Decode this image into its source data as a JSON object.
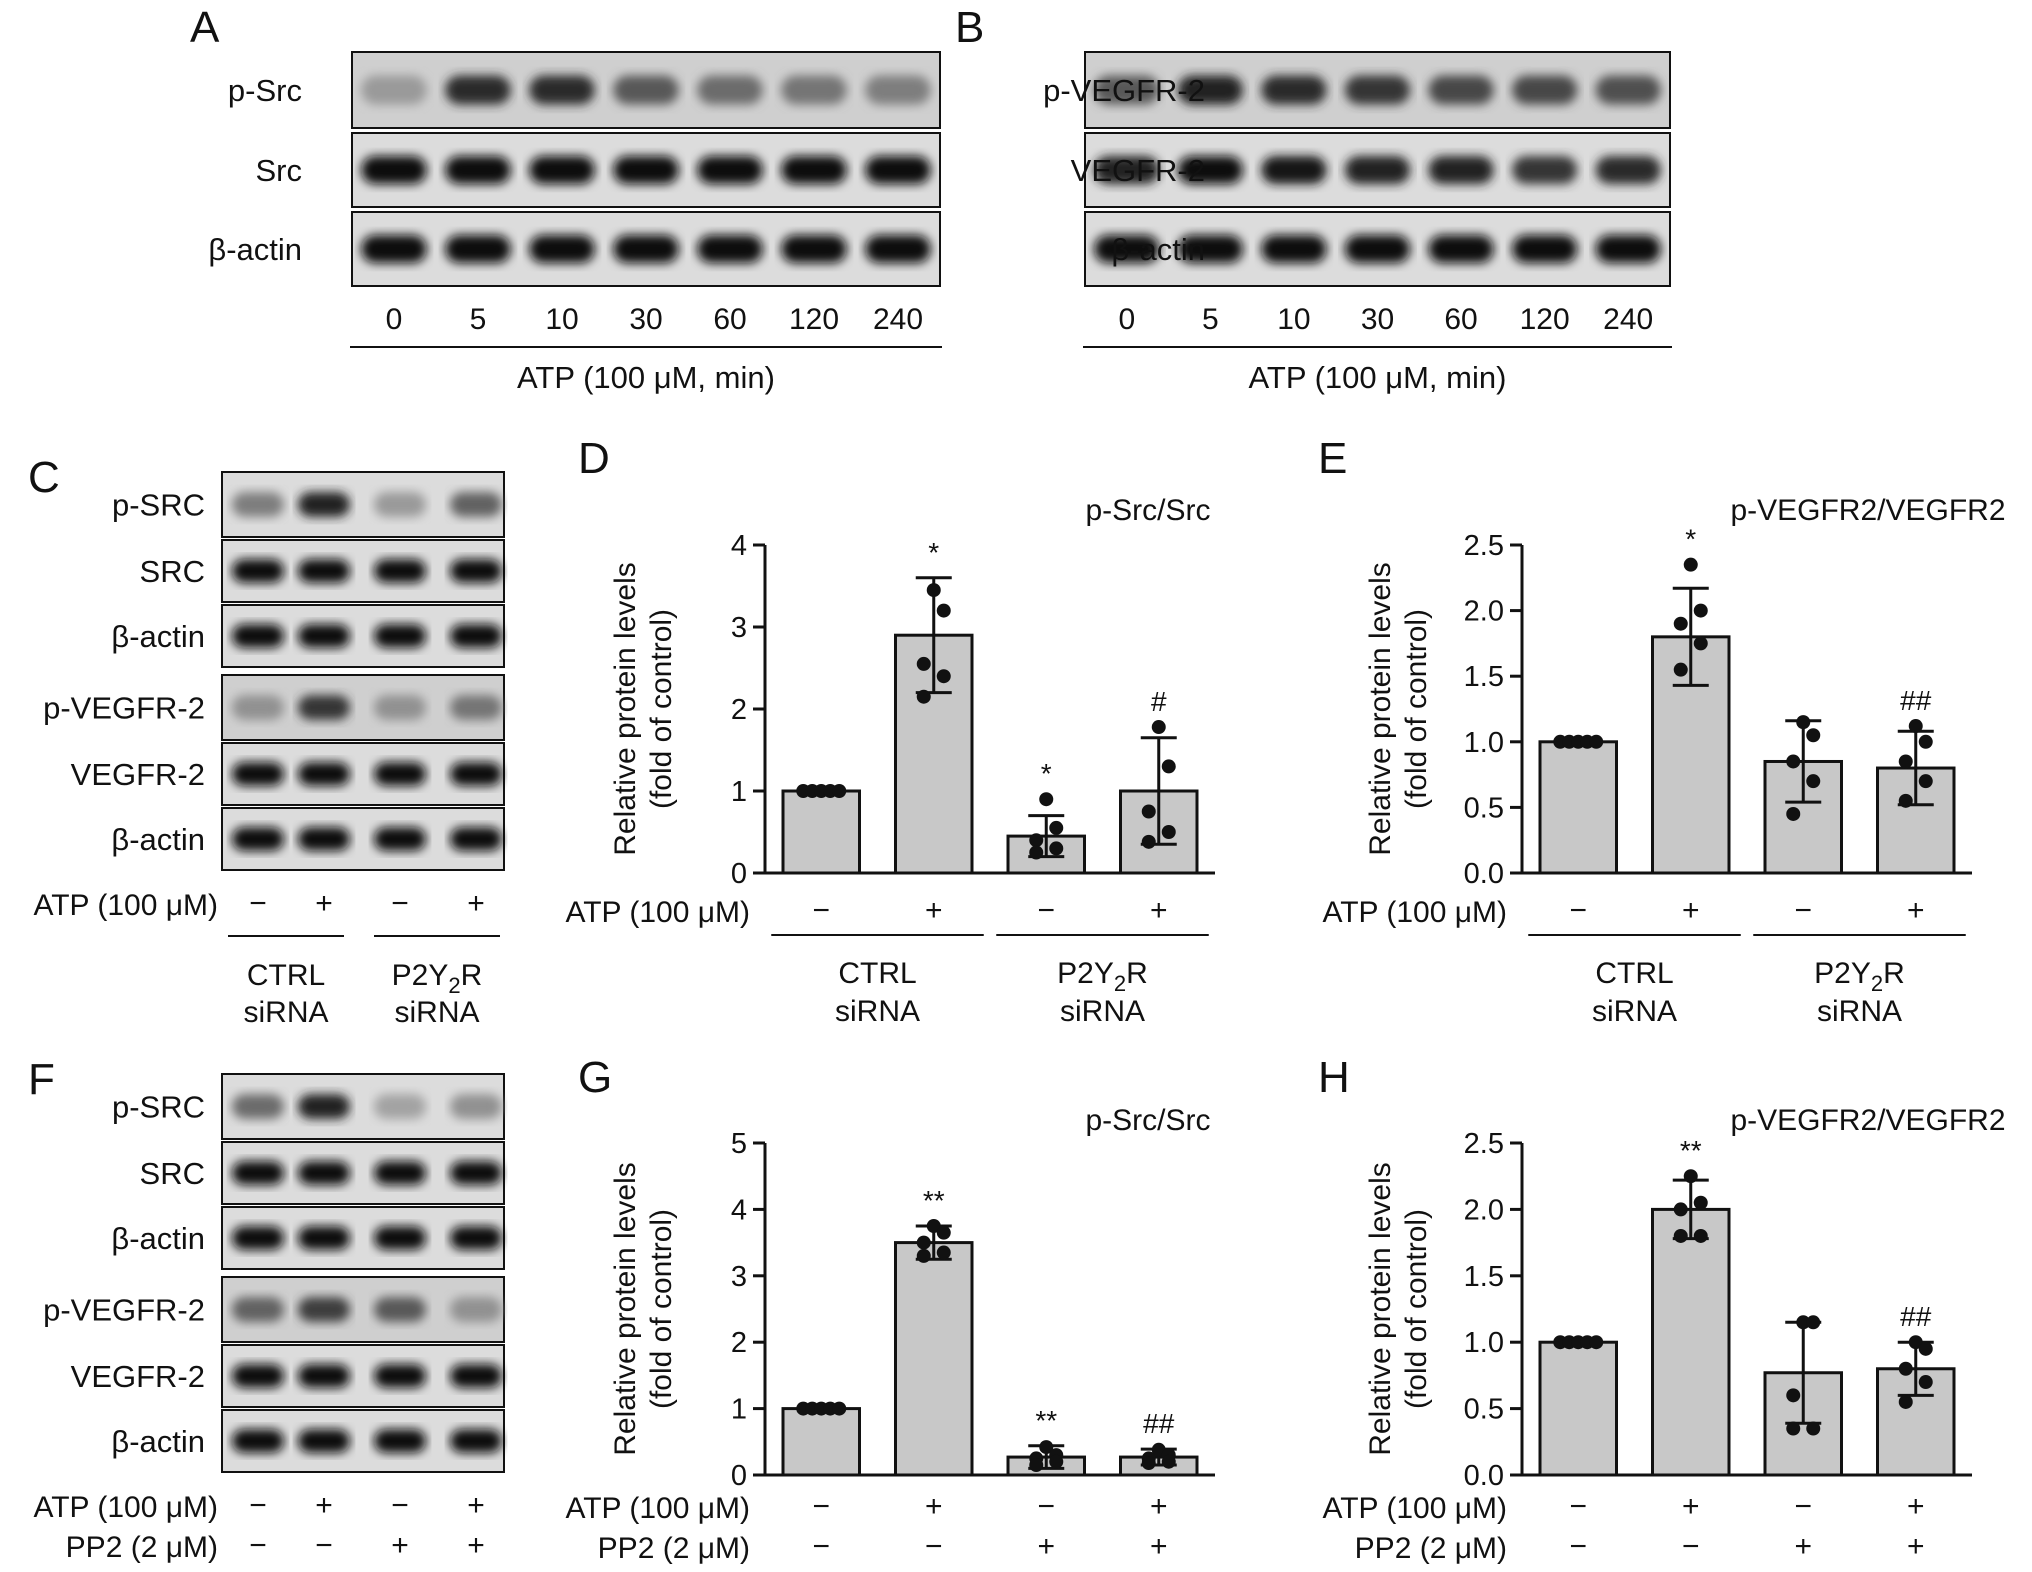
{
  "panels": {
    "A": {
      "letter": "A",
      "strips": [
        {
          "label": "p-Src",
          "intensity": [
            0.25,
            0.85,
            0.85,
            0.6,
            0.5,
            0.45,
            0.4
          ],
          "faint": true
        },
        {
          "label": "Src",
          "intensity": [
            1,
            1,
            1,
            1,
            1,
            1,
            1
          ]
        },
        {
          "label": "β-actin",
          "intensity": [
            1,
            1,
            1,
            1,
            1,
            1,
            1
          ]
        }
      ],
      "lanes": [
        "0",
        "5",
        "10",
        "30",
        "60",
        "120",
        "240"
      ],
      "caption": "ATP (100 μM, min)"
    },
    "B": {
      "letter": "B",
      "strips": [
        {
          "label": "p-VEGFR-2",
          "intensity": [
            0.6,
            0.9,
            0.85,
            0.8,
            0.7,
            0.7,
            0.65
          ],
          "faint": true
        },
        {
          "label": "VEGFR-2",
          "intensity": [
            0.9,
            1,
            0.95,
            0.9,
            0.9,
            0.8,
            0.85
          ]
        },
        {
          "label": "β-actin",
          "intensity": [
            1,
            1,
            1,
            1,
            1,
            1,
            1
          ]
        }
      ],
      "lanes": [
        "0",
        "5",
        "10",
        "30",
        "60",
        "120",
        "240"
      ],
      "caption": "ATP (100 μM, min)"
    },
    "C": {
      "letter": "C",
      "strips": [
        {
          "label": "p-SRC",
          "intensity": [
            0.4,
            0.9,
            0.25,
            0.55
          ]
        },
        {
          "label": "SRC",
          "intensity": [
            1,
            1,
            1,
            1
          ]
        },
        {
          "label": "β-actin",
          "intensity": [
            1,
            1,
            1,
            1
          ]
        },
        {
          "label": "p-VEGFR-2",
          "intensity": [
            0.3,
            0.8,
            0.3,
            0.45
          ],
          "faint": true
        },
        {
          "label": "VEGFR-2",
          "intensity": [
            1,
            1,
            1,
            1
          ]
        },
        {
          "label": "β-actin",
          "intensity": [
            1,
            1,
            1,
            1
          ]
        }
      ],
      "atp_label": "ATP (100 μM)",
      "atp": [
        "−",
        "+",
        "−",
        "+"
      ],
      "groups": [
        {
          "line1": "CTRL",
          "line2": "siRNA"
        },
        {
          "line1_pre": "P2Y",
          "line1_sub": "2",
          "line1_post": "R",
          "line2": "siRNA"
        }
      ]
    },
    "F": {
      "letter": "F",
      "strips": [
        {
          "label": "p-SRC",
          "intensity": [
            0.5,
            0.9,
            0.2,
            0.3
          ]
        },
        {
          "label": "SRC",
          "intensity": [
            1,
            1,
            1,
            1
          ]
        },
        {
          "label": "β-actin",
          "intensity": [
            1,
            1,
            1,
            1
          ]
        },
        {
          "label": "p-VEGFR-2",
          "intensity": [
            0.55,
            0.75,
            0.6,
            0.3
          ],
          "faint": true
        },
        {
          "label": "VEGFR-2",
          "intensity": [
            1,
            1,
            1,
            1
          ]
        },
        {
          "label": "β-actin",
          "intensity": [
            1,
            1,
            1,
            1
          ]
        }
      ],
      "atp_label": "ATP (100 μM)",
      "atp": [
        "−",
        "+",
        "−",
        "+"
      ],
      "pp2_label": "PP2 (2 μM)",
      "pp2": [
        "−",
        "−",
        "+",
        "+"
      ]
    }
  },
  "chart_data": [
    {
      "panel": "D",
      "type": "bar",
      "title": "p-Src/Src",
      "ylabel_line1": "Relative protein levels",
      "ylabel_line2": "(fold of control)",
      "ylim": [
        0,
        4
      ],
      "yticks": [
        "0",
        "1",
        "2",
        "3",
        "4"
      ],
      "categories": [
        "1",
        "2",
        "3",
        "4"
      ],
      "values": [
        1.0,
        2.9,
        0.45,
        1.0
      ],
      "error": [
        0.0,
        0.7,
        0.25,
        0.65
      ],
      "points": [
        [
          1,
          1,
          1,
          1,
          1
        ],
        [
          3.45,
          3.2,
          2.55,
          2.4,
          2.15
        ],
        [
          0.9,
          0.55,
          0.4,
          0.3,
          0.25
        ],
        [
          1.78,
          1.3,
          0.75,
          0.5,
          0.38
        ]
      ],
      "sig": [
        "",
        "*",
        "*",
        "#"
      ],
      "xrows": [
        {
          "label": "ATP (100 μM)",
          "values": [
            "−",
            "+",
            "−",
            "+"
          ]
        }
      ],
      "groups": [
        {
          "line1": "CTRL",
          "line2": "siRNA"
        },
        {
          "line1_pre": "P2Y",
          "line1_sub": "2",
          "line1_post": "R",
          "line2": "siRNA"
        }
      ]
    },
    {
      "panel": "E",
      "type": "bar",
      "title": "p-VEGFR2/VEGFR2",
      "ylabel_line1": "Relative protein levels",
      "ylabel_line2": "(fold of control)",
      "ylim": [
        0,
        2.5
      ],
      "yticks": [
        "0.0",
        "0.5",
        "1.0",
        "1.5",
        "2.0",
        "2.5"
      ],
      "categories": [
        "1",
        "2",
        "3",
        "4"
      ],
      "values": [
        1.0,
        1.8,
        0.85,
        0.8
      ],
      "error": [
        0.0,
        0.37,
        0.31,
        0.28
      ],
      "points": [
        [
          1,
          1,
          1,
          1,
          1
        ],
        [
          2.35,
          2.0,
          1.9,
          1.75,
          1.55
        ],
        [
          1.15,
          1.05,
          0.85,
          0.7,
          0.45
        ],
        [
          1.12,
          1.0,
          0.85,
          0.7,
          0.55
        ]
      ],
      "sig": [
        "",
        "*",
        "",
        "##"
      ],
      "xrows": [
        {
          "label": "ATP (100 μM)",
          "values": [
            "−",
            "+",
            "−",
            "+"
          ]
        }
      ],
      "groups": [
        {
          "line1": "CTRL",
          "line2": "siRNA"
        },
        {
          "line1_pre": "P2Y",
          "line1_sub": "2",
          "line1_post": "R",
          "line2": "siRNA"
        }
      ]
    },
    {
      "panel": "G",
      "type": "bar",
      "title": "p-Src/Src",
      "ylabel_line1": "Relative protein levels",
      "ylabel_line2": "(fold of control)",
      "ylim": [
        0,
        5
      ],
      "yticks": [
        "0",
        "1",
        "2",
        "3",
        "4",
        "5"
      ],
      "categories": [
        "1",
        "2",
        "3",
        "4"
      ],
      "values": [
        1.0,
        3.5,
        0.27,
        0.27
      ],
      "error": [
        0.0,
        0.25,
        0.17,
        0.12
      ],
      "points": [
        [
          1,
          1,
          1,
          1,
          1
        ],
        [
          3.75,
          3.65,
          3.5,
          3.35,
          3.3
        ],
        [
          0.42,
          0.3,
          0.25,
          0.2,
          0.15
        ],
        [
          0.38,
          0.3,
          0.25,
          0.2,
          0.18
        ]
      ],
      "sig": [
        "",
        "**",
        "**",
        "##"
      ],
      "xrows": [
        {
          "label": "ATP (100 μM)",
          "values": [
            "−",
            "+",
            "−",
            "+"
          ]
        },
        {
          "label": "PP2 (2 μM)",
          "values": [
            "−",
            "−",
            "+",
            "+"
          ]
        }
      ]
    },
    {
      "panel": "H",
      "type": "bar",
      "title": "p-VEGFR2/VEGFR2",
      "ylabel_line1": "Relative protein levels",
      "ylabel_line2": "(fold of control)",
      "ylim": [
        0,
        2.5
      ],
      "yticks": [
        "0.0",
        "0.5",
        "1.0",
        "1.5",
        "2.0",
        "2.5"
      ],
      "categories": [
        "1",
        "2",
        "3",
        "4"
      ],
      "values": [
        1.0,
        2.0,
        0.77,
        0.8
      ],
      "error": [
        0.0,
        0.22,
        0.38,
        0.2
      ],
      "points": [
        [
          1,
          1,
          1,
          1,
          1
        ],
        [
          2.25,
          2.05,
          2.0,
          1.8,
          1.8
        ],
        [
          1.15,
          1.15,
          0.6,
          0.35,
          0.35
        ],
        [
          1.0,
          0.95,
          0.8,
          0.7,
          0.55
        ]
      ],
      "sig": [
        "",
        "**",
        "",
        "##"
      ],
      "xrows": [
        {
          "label": "ATP (100 μM)",
          "values": [
            "−",
            "+",
            "−",
            "+"
          ]
        },
        {
          "label": "PP2 (2 μM)",
          "values": [
            "−",
            "−",
            "+",
            "+"
          ]
        }
      ]
    }
  ]
}
